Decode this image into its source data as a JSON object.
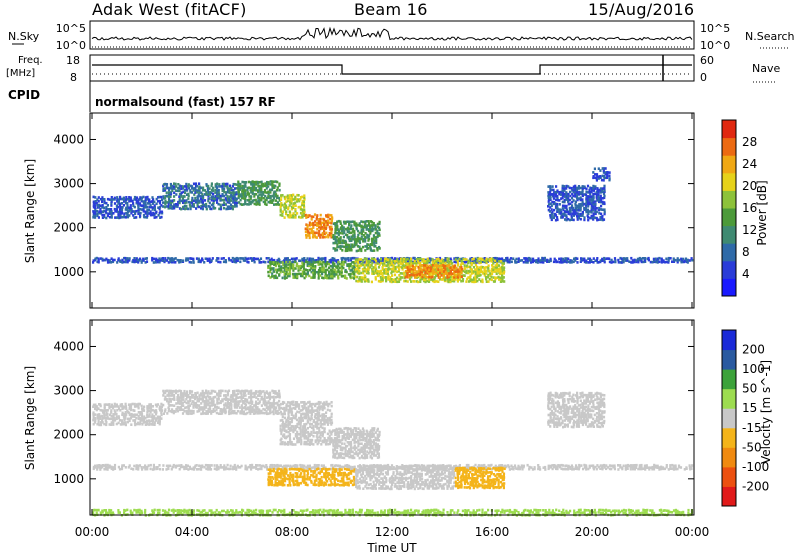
{
  "header": {
    "station": "Adak West (fitACF)",
    "beam": "Beam 16",
    "date": "15/Aug/2016"
  },
  "status_panels": {
    "nsky_label": "N.Sky",
    "nsky_ticks": [
      "10^5",
      "10^0"
    ],
    "nsearch_label": "N.Search",
    "nsearch_ticks": [
      "10^5",
      "10^0"
    ],
    "freq_label": "Freq.",
    "freq_unit": "[MHz]",
    "freq_ticks": [
      "18",
      "8"
    ],
    "nave_label": "Nave",
    "nave_ticks": [
      "60",
      "0"
    ],
    "cpid_label": "CPID",
    "cpid_value": "normalsound (fast) 157 RF"
  },
  "colors": {
    "frame": "#000000"
  },
  "chart_data": [
    {
      "type": "heatmap",
      "name": "power",
      "ylabel": "Slant Range [km]",
      "yticks": [
        1000,
        2000,
        3000,
        4000
      ],
      "ylim": [
        180,
        4600
      ],
      "xlim": [
        0,
        24
      ],
      "xticks": [
        0,
        4,
        8,
        12,
        16,
        20,
        24
      ],
      "colorbar_label": "Power [dB]",
      "colorbar_ticks": [
        "4",
        "8",
        "12",
        "16",
        "20",
        "24",
        "28"
      ],
      "colorbar_range": [
        0,
        30
      ],
      "colorbar_colors": [
        "#1a1aff",
        "#2a3cd8",
        "#2f6aa8",
        "#3f8a72",
        "#4c9a3a",
        "#8dc23a",
        "#e6d21a",
        "#f0a814",
        "#ec6a12",
        "#e02810"
      ],
      "regions": [
        {
          "t0": 0.0,
          "t1": 2.8,
          "r0": 2250,
          "r1": 2750,
          "level": 6
        },
        {
          "t0": 2.8,
          "t1": 5.8,
          "r0": 2450,
          "r1": 3050,
          "level": 8
        },
        {
          "t0": 5.8,
          "t1": 7.5,
          "r0": 2550,
          "r1": 3100,
          "level": 12
        },
        {
          "t0": 7.5,
          "t1": 8.5,
          "r0": 2250,
          "r1": 2800,
          "level": 18
        },
        {
          "t0": 8.5,
          "t1": 9.6,
          "r0": 1800,
          "r1": 2350,
          "level": 24
        },
        {
          "t0": 9.6,
          "t1": 11.5,
          "r0": 1500,
          "r1": 2200,
          "level": 12
        },
        {
          "t0": 0.0,
          "t1": 24.0,
          "r0": 1240,
          "r1": 1360,
          "level": 6
        },
        {
          "t0": 7.0,
          "t1": 10.5,
          "r0": 880,
          "r1": 1280,
          "level": 14
        },
        {
          "t0": 10.5,
          "t1": 16.5,
          "r0": 800,
          "r1": 1350,
          "level": 18
        },
        {
          "t0": 12.5,
          "t1": 14.8,
          "r0": 900,
          "r1": 1200,
          "level": 24
        },
        {
          "t0": 18.2,
          "t1": 20.5,
          "r0": 2200,
          "r1": 3000,
          "level": 6
        },
        {
          "t0": 20.0,
          "t1": 20.7,
          "r0": 3100,
          "r1": 3400,
          "level": 6
        }
      ]
    },
    {
      "type": "heatmap",
      "name": "velocity",
      "ylabel": "Slant Range [km]",
      "xlabel": "Time UT",
      "yticks": [
        1000,
        2000,
        3000,
        4000
      ],
      "ylim": [
        180,
        4600
      ],
      "xlim": [
        0,
        24
      ],
      "xticks": [
        0,
        4,
        8,
        12,
        16,
        20,
        24
      ],
      "xticklabels": [
        "00:00",
        "04:00",
        "08:00",
        "12:00",
        "16:00",
        "20:00",
        "00:00"
      ],
      "colorbar_label": "Velocity [m s^-1]",
      "colorbar_ticks": [
        "-200",
        "-100",
        "-50",
        "-15",
        "15",
        "50",
        "100",
        "200"
      ],
      "colorbar_values": [
        -250,
        -200,
        -100,
        -50,
        -15,
        15,
        50,
        100,
        200,
        250
      ],
      "colorbar_colors": [
        "#e11a1a",
        "#ec5010",
        "#f08a10",
        "#f4b41a",
        "#c8c8c8",
        "#9ddc50",
        "#3ca23a",
        "#2a5aa0",
        "#1a2ad8"
      ],
      "regions": [
        {
          "t0": 0.0,
          "t1": 2.8,
          "r0": 2250,
          "r1": 2750,
          "level": 0
        },
        {
          "t0": 2.8,
          "t1": 7.5,
          "r0": 2500,
          "r1": 3050,
          "level": 0
        },
        {
          "t0": 7.5,
          "t1": 9.6,
          "r0": 1800,
          "r1": 2800,
          "level": 0
        },
        {
          "t0": 9.6,
          "t1": 11.5,
          "r0": 1500,
          "r1": 2200,
          "level": 0
        },
        {
          "t0": 0.0,
          "t1": 24.0,
          "r0": 1240,
          "r1": 1360,
          "level": 0
        },
        {
          "t0": 7.0,
          "t1": 8.5,
          "r0": 880,
          "r1": 1280,
          "level": -40
        },
        {
          "t0": 8.5,
          "t1": 10.5,
          "r0": 880,
          "r1": 1280,
          "level": -30
        },
        {
          "t0": 10.5,
          "t1": 14.5,
          "r0": 800,
          "r1": 1350,
          "level": 0
        },
        {
          "t0": 14.5,
          "t1": 16.5,
          "r0": 820,
          "r1": 1300,
          "level": -40
        },
        {
          "t0": 18.2,
          "t1": 20.5,
          "r0": 2200,
          "r1": 3000,
          "level": 0
        },
        {
          "t0": 0.0,
          "t1": 24.0,
          "r0": 200,
          "r1": 350,
          "level": 30
        }
      ]
    }
  ]
}
